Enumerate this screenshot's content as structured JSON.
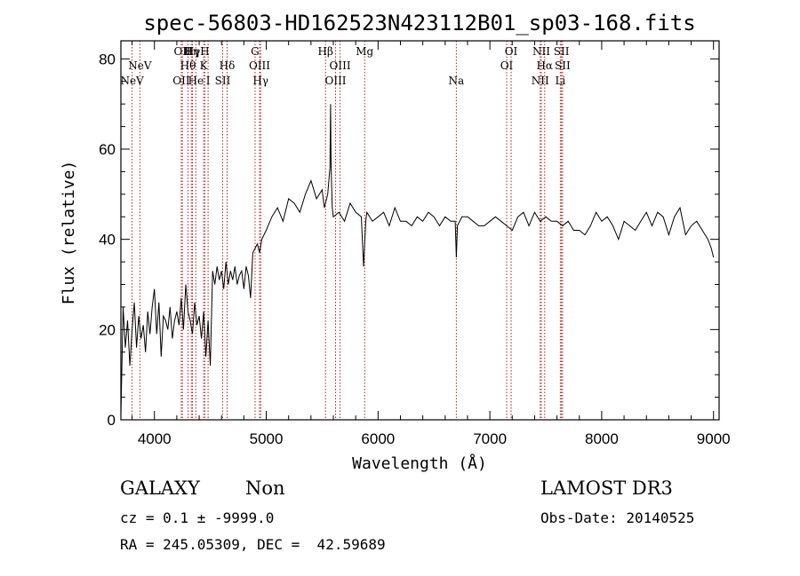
{
  "chart_data": {
    "type": "line",
    "title": "spec-56803-HD162523N423112B01_sp03-168.fits",
    "xlabel": "Wavelength (Å)",
    "ylabel": "Flux (relative)",
    "xlim": [
      3700,
      9050
    ],
    "ylim": [
      0,
      84
    ],
    "x_ticks": [
      4000,
      5000,
      6000,
      7000,
      8000,
      9000
    ],
    "y_ticks": [
      0,
      20,
      40,
      60,
      80
    ],
    "line_color": "#000000",
    "marker_color": "#b22222",
    "series": [
      {
        "x": [
          3700,
          3720,
          3740,
          3760,
          3780,
          3800,
          3820,
          3840,
          3860,
          3880,
          3900,
          3920,
          3940,
          3960,
          3980,
          4000,
          4020,
          4040,
          4060,
          4080,
          4100,
          4120,
          4140,
          4160,
          4180,
          4200,
          4220,
          4240,
          4260,
          4280,
          4300,
          4320,
          4340,
          4360,
          4380,
          4400,
          4420,
          4440,
          4460,
          4480,
          4500,
          4520,
          4540,
          4560,
          4580,
          4600,
          4620,
          4640,
          4660,
          4680,
          4700,
          4720,
          4740,
          4760,
          4780,
          4800,
          4820,
          4840,
          4860,
          4880,
          4900,
          4920,
          4940,
          4960,
          4980,
          5000,
          5050,
          5100,
          5150,
          5200,
          5250,
          5300,
          5350,
          5400,
          5450,
          5500,
          5520,
          5550,
          5570,
          5575,
          5580,
          5590,
          5600,
          5650,
          5700,
          5750,
          5800,
          5850,
          5870,
          5890,
          5900,
          5950,
          6000,
          6050,
          6100,
          6150,
          6200,
          6250,
          6300,
          6350,
          6400,
          6450,
          6500,
          6550,
          6600,
          6650,
          6690,
          6700,
          6710,
          6750,
          6800,
          6850,
          6900,
          6950,
          7000,
          7050,
          7100,
          7150,
          7200,
          7250,
          7300,
          7350,
          7400,
          7450,
          7500,
          7550,
          7600,
          7650,
          7700,
          7750,
          7800,
          7850,
          7900,
          7950,
          8000,
          8050,
          8100,
          8150,
          8200,
          8250,
          8300,
          8350,
          8400,
          8450,
          8500,
          8550,
          8600,
          8650,
          8700,
          8750,
          8800,
          8850,
          8900,
          8950,
          8980,
          9000
        ],
        "y": [
          1,
          25,
          16,
          22,
          12,
          20,
          26,
          16,
          23,
          18,
          21,
          15,
          24,
          19,
          25,
          29,
          19,
          26,
          14,
          23,
          22,
          20,
          25,
          18,
          22,
          24,
          21,
          27,
          20,
          30,
          24,
          22,
          19,
          26,
          21,
          23,
          18,
          24,
          14,
          22,
          12,
          33,
          30,
          34,
          31,
          33,
          29,
          35,
          30,
          33,
          31,
          34,
          30,
          32,
          33,
          29,
          34,
          32,
          27,
          37,
          38,
          39,
          37,
          40,
          41,
          42,
          45,
          47,
          44,
          49,
          48,
          46,
          50,
          53,
          49,
          51,
          47,
          50,
          56,
          70,
          56,
          47,
          45,
          46,
          44,
          48,
          46,
          45,
          34,
          44,
          46,
          44,
          45,
          46,
          43,
          47,
          44,
          44,
          43,
          45,
          44,
          46,
          45,
          43,
          45,
          44,
          44,
          36,
          43,
          45,
          45,
          44,
          43,
          43,
          44,
          45,
          44,
          43,
          42,
          45,
          46,
          43,
          46,
          44,
          45,
          44,
          44,
          43,
          44,
          42,
          42,
          41,
          43,
          46,
          44,
          45,
          43,
          40,
          44,
          43,
          42,
          44,
          46,
          43,
          46,
          45,
          41,
          45,
          47,
          41,
          43,
          44,
          42,
          40,
          38,
          36
        ]
      }
    ],
    "line_markers": [
      {
        "wavelength": 3800,
        "label": "NeV",
        "row": 3
      },
      {
        "wavelength": 3870,
        "label": "NeV",
        "row": 2
      },
      {
        "wavelength": 4240,
        "label": "OII",
        "row": 3
      },
      {
        "wavelength": 4340,
        "label": "Hγ",
        "row": 1
      },
      {
        "wavelength": 4250,
        "label": "OII",
        "row": 1
      },
      {
        "wavelength": 4300,
        "label": "Hθ",
        "row": 2
      },
      {
        "wavelength": 4330,
        "label": "Hη",
        "row": 1
      },
      {
        "wavelength": 4370,
        "label": "He",
        "row": 3
      },
      {
        "wavelength": 4450,
        "label": "H",
        "row": 1
      },
      {
        "wavelength": 4440,
        "label": "K",
        "row": 2
      },
      {
        "wavelength": 4480,
        "label": "I",
        "row": 3
      },
      {
        "wavelength": 4610,
        "label": "SII",
        "row": 3
      },
      {
        "wavelength": 4650,
        "label": "Hδ",
        "row": 2
      },
      {
        "wavelength": 4900,
        "label": "G",
        "row": 1
      },
      {
        "wavelength": 4940,
        "label": "OIII",
        "row": 2
      },
      {
        "wavelength": 4950,
        "label": "Hγ",
        "row": 3
      },
      {
        "wavelength": 5530,
        "label": "Hβ",
        "row": 1
      },
      {
        "wavelength": 5660,
        "label": "OIII",
        "row": 2
      },
      {
        "wavelength": 5620,
        "label": "OIII",
        "row": 3
      },
      {
        "wavelength": 5880,
        "label": "Mg",
        "row": 1
      },
      {
        "wavelength": 6700,
        "label": "Na",
        "row": 3
      },
      {
        "wavelength": 7190,
        "label": "OI",
        "row": 1
      },
      {
        "wavelength": 7150,
        "label": "OI",
        "row": 2
      },
      {
        "wavelength": 7460,
        "label": "NII",
        "row": 1
      },
      {
        "wavelength": 7490,
        "label": "Hα",
        "row": 2
      },
      {
        "wavelength": 7450,
        "label": "NII",
        "row": 3
      },
      {
        "wavelength": 7640,
        "label": "SII",
        "row": 1
      },
      {
        "wavelength": 7650,
        "label": "SII",
        "row": 2
      },
      {
        "wavelength": 7630,
        "label": "Li",
        "row": 3
      }
    ],
    "grid": false,
    "legend": "none"
  },
  "info": {
    "object_class": "GALAXY",
    "subclass": "Non",
    "redshift_line": "cz = 0.1 ± -9999.0",
    "coords_line": "RA = 245.05309, DEC =  42.59689",
    "survey": "LAMOST DR3",
    "obs_date": "Obs-Date: 20140525"
  }
}
